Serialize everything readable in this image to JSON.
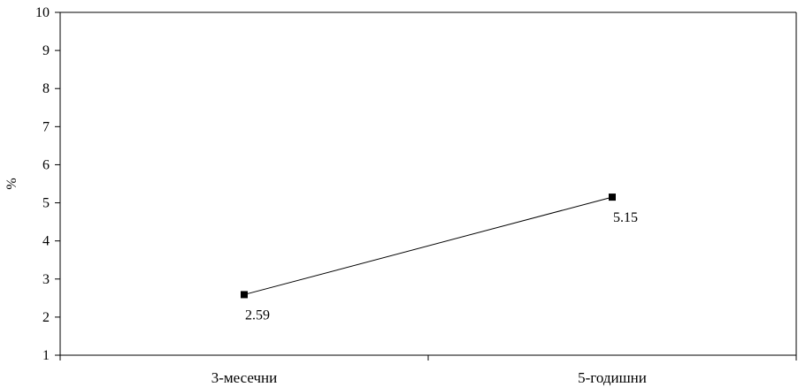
{
  "chart_data": {
    "type": "line",
    "categories": [
      "3-месечни",
      "5-годишни"
    ],
    "series": [
      {
        "values": [
          2.59,
          5.15
        ],
        "data_labels": [
          "2.59",
          "5.15"
        ]
      }
    ],
    "ylabel": "%",
    "ylim": [
      1,
      10
    ],
    "yticks": [
      "1",
      "2",
      "3",
      "4",
      "5",
      "6",
      "7",
      "8",
      "9",
      "10"
    ],
    "grid": false,
    "marker": "square",
    "line_color": "#000000",
    "axis_color": "#000000"
  }
}
